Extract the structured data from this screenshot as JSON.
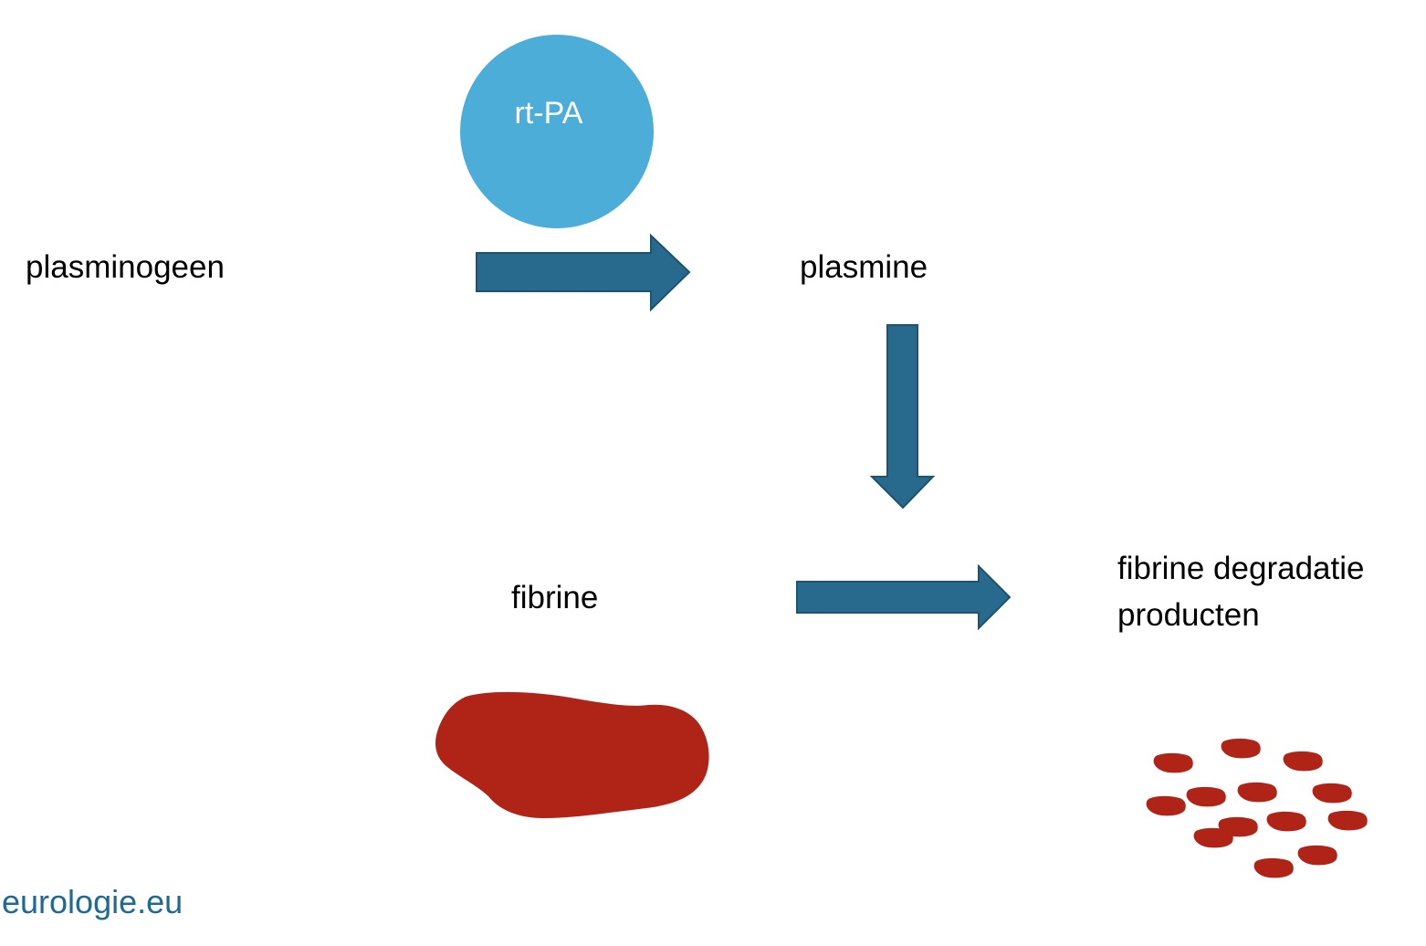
{
  "nodes": {
    "plasminogen": "plasminogeen",
    "catalyst": "rt-PA",
    "plasmin": "plasmine",
    "fibrin": "fibrine",
    "fdp_line1": "fibrine degradatie",
    "fdp_line2": "producten"
  },
  "watermark": "eurologie.eu",
  "colors": {
    "catalyst_circle": "#4badd8",
    "arrow_fill": "#276a8d",
    "arrow_stroke": "#1d5270",
    "clot": "#b02418",
    "watermark": "#1f6a93",
    "label_text": "#000000"
  },
  "icons": {
    "clot": "fibrin-clot-icon",
    "fragments": "fibrin-fragments-icon"
  }
}
